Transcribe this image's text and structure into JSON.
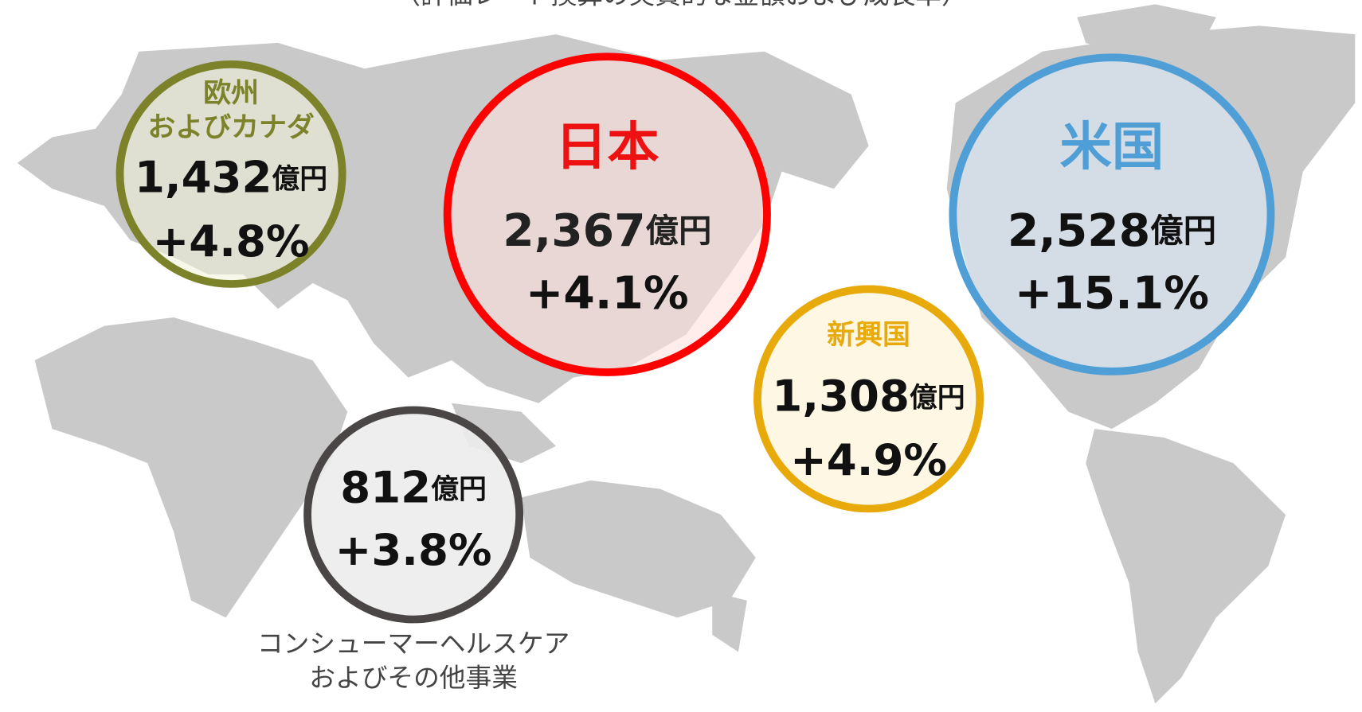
{
  "subtitle": "（評価レート換算の実質的な金額および成長率）",
  "regions": [
    {
      "name": [
        "欧州",
        "およびカナダ"
      ],
      "amount": "1,432",
      "unit": "億円",
      "growth": "+4.8%"
    },
    {
      "name": [
        "日本"
      ],
      "amount": "2,367",
      "unit": "億円",
      "growth": "+4.1%"
    },
    {
      "name": [
        "米国"
      ],
      "amount": "2,528",
      "unit": "億円",
      "growth": "+15.1%"
    },
    {
      "name": [
        "新興国"
      ],
      "amount": "1,308",
      "unit": "億円",
      "growth": "+4.9%"
    },
    {
      "amount": "812",
      "unit": "億円",
      "growth": "+3.8%",
      "caption": [
        "コンシューマーヘルスケア",
        "およびその他事業"
      ]
    }
  ]
}
